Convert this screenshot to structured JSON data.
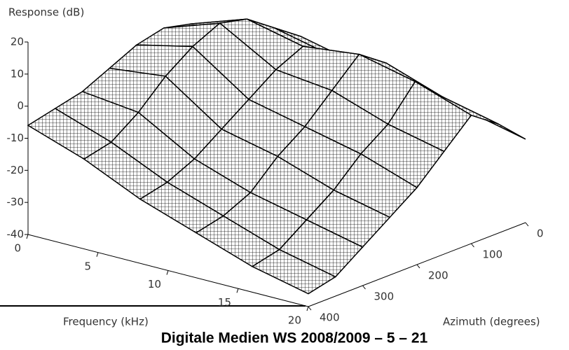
{
  "chart_data": {
    "type": "surface",
    "zlabel": "Response (dB)",
    "xlabel": "Frequency (kHz)",
    "ylabel": "Azimuth (degrees)",
    "zlim": [
      -40,
      20
    ],
    "zticks": [
      20,
      10,
      0,
      -10,
      -20,
      -30,
      -40
    ],
    "xlim": [
      0,
      20
    ],
    "xticks": [
      0,
      5,
      10,
      15,
      20
    ],
    "ylim": [
      0,
      400
    ],
    "yticks": [
      0,
      100,
      200,
      300,
      400
    ],
    "frequency": [
      0,
      4,
      8,
      12,
      16,
      20
    ],
    "azimuth": [
      0,
      50,
      100,
      150,
      200,
      250,
      300,
      350,
      400
    ],
    "values": [
      [
        -2,
        2,
        6,
        8,
        6,
        2,
        -2,
        -4,
        -6
      ],
      [
        0,
        6,
        12,
        14,
        10,
        4,
        -4,
        -10,
        -12
      ],
      [
        -4,
        2,
        8,
        4,
        -2,
        -8,
        -14,
        -18,
        -20
      ],
      [
        -6,
        4,
        10,
        2,
        -6,
        -12,
        -20,
        -24,
        -26
      ],
      [
        -10,
        -2,
        6,
        -4,
        -10,
        -18,
        -24,
        -30,
        -32
      ],
      [
        -14,
        -6,
        0,
        -8,
        -16,
        -22,
        -28,
        -34,
        -36
      ]
    ]
  },
  "footer": "Digitale Medien WS 2008/2009 – 5 – 21"
}
